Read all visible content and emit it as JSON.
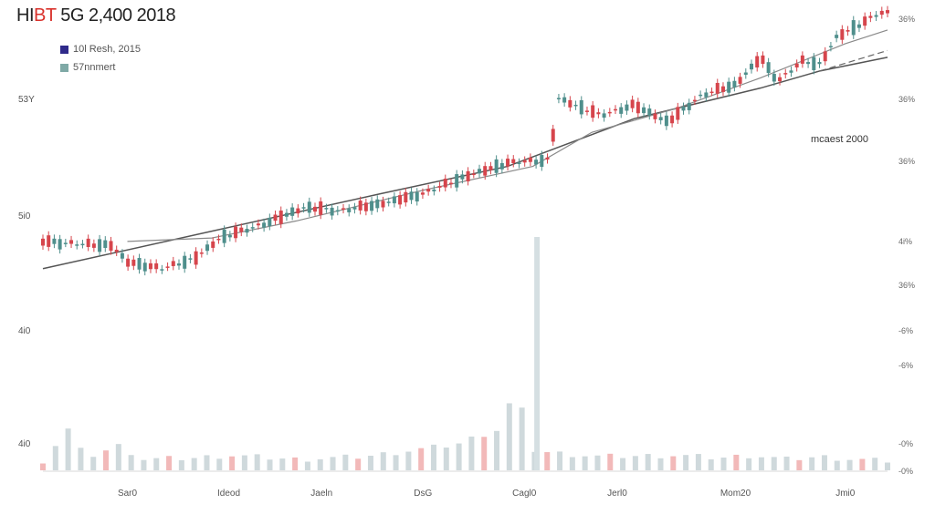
{
  "title": {
    "prefix": "HI",
    "highlight": "BT",
    "rest": " 5G 2,400 2018"
  },
  "legend": [
    {
      "label": "10l Resh, 2015",
      "color": "#2f2a8a"
    },
    {
      "label": "57nnmert",
      "color": "#7fa9a6"
    }
  ],
  "chart_data": {
    "type": "candlestick",
    "x_labels": [
      "Sar0",
      "Ideod",
      "Jaeln",
      "DsG",
      "Cagl0",
      "Jerl0",
      "Mom20",
      "Jmi0"
    ],
    "left_axis_labels": [
      "53Y",
      "5i0",
      "4i0",
      "4i0"
    ],
    "right_axis_labels": [
      "36%",
      "36%",
      "36%",
      "4i%",
      "36%",
      "-6%",
      "-6%",
      "-0%",
      "-0%"
    ],
    "annotation": "mcaest 2000",
    "ylim": [
      0,
      100
    ],
    "up_color": "#4f8f8c",
    "down_color": "#d6454c",
    "trend_color": "#555555",
    "volume_up_color": "#cfd9dc",
    "volume_down_color": "#f2b9b9",
    "price_anchors": [
      [
        0,
        34
      ],
      [
        6,
        33
      ],
      [
        8,
        33
      ],
      [
        10,
        28
      ],
      [
        14,
        26
      ],
      [
        18,
        29
      ],
      [
        21,
        35
      ],
      [
        26,
        39
      ],
      [
        31,
        44
      ],
      [
        35,
        43
      ],
      [
        40,
        45
      ],
      [
        45,
        48
      ],
      [
        50,
        53
      ],
      [
        55,
        57
      ],
      [
        60,
        58
      ],
      [
        61,
        76
      ],
      [
        66,
        71
      ],
      [
        70,
        74
      ],
      [
        74,
        69
      ],
      [
        78,
        77
      ],
      [
        82,
        80
      ],
      [
        85,
        88
      ],
      [
        87,
        81
      ],
      [
        90,
        87
      ],
      [
        92,
        86
      ],
      [
        94,
        94
      ],
      [
        97,
        98
      ],
      [
        99,
        101
      ]
    ],
    "volume_anchors": [
      [
        0,
        5
      ],
      [
        3,
        28
      ],
      [
        5,
        7
      ],
      [
        9,
        16
      ],
      [
        12,
        6
      ],
      [
        18,
        7
      ],
      [
        22,
        9
      ],
      [
        30,
        6
      ],
      [
        38,
        8
      ],
      [
        49,
        17
      ],
      [
        51,
        22
      ],
      [
        54,
        28
      ],
      [
        56,
        58
      ],
      [
        58,
        13
      ],
      [
        60,
        11
      ],
      [
        66,
        8
      ],
      [
        75,
        9
      ],
      [
        80,
        7
      ],
      [
        84,
        9
      ],
      [
        88,
        6
      ],
      [
        92,
        8
      ],
      [
        96,
        6
      ],
      [
        99,
        5
      ]
    ],
    "trend_line": [
      [
        0,
        26
      ],
      [
        20,
        37
      ],
      [
        40,
        48
      ],
      [
        55,
        56
      ],
      [
        70,
        70
      ],
      [
        85,
        79
      ],
      [
        92,
        84
      ],
      [
        100,
        88
      ]
    ],
    "ma_line": [
      [
        10,
        34
      ],
      [
        20,
        35
      ],
      [
        30,
        40
      ],
      [
        45,
        49
      ],
      [
        58,
        56
      ],
      [
        65,
        66
      ],
      [
        75,
        73
      ],
      [
        85,
        82
      ],
      [
        95,
        92
      ],
      [
        100,
        96
      ]
    ]
  }
}
